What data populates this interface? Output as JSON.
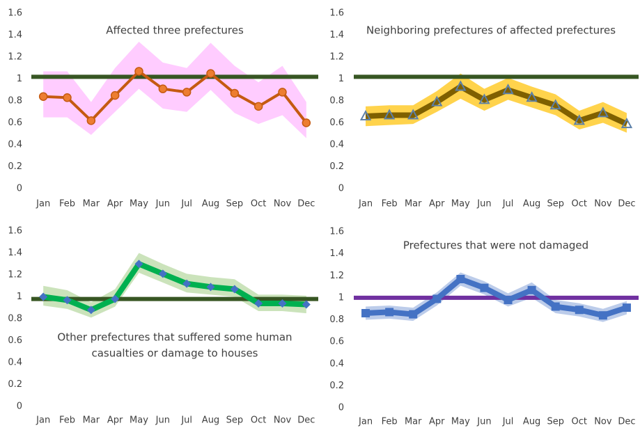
{
  "chart_data": [
    {
      "type": "line",
      "title": "Affected three prefectures",
      "categories": [
        "Jan",
        "Feb",
        "Mar",
        "Apr",
        "May",
        "Jun",
        "Jul",
        "Aug",
        "Sep",
        "Oct",
        "Nov",
        "Dec"
      ],
      "ylim": [
        0,
        1.6
      ],
      "yticks": [
        0,
        0.2,
        0.4,
        0.6,
        0.8,
        1,
        1.2,
        1.4,
        1.6
      ],
      "marker": "circle",
      "series": [
        {
          "color": "#c55a11",
          "marker_color": "#ed7d31",
          "values": [
            0.84,
            0.83,
            0.62,
            0.85,
            1.07,
            0.91,
            0.88,
            1.05,
            0.87,
            0.75,
            0.88,
            0.6
          ]
        }
      ],
      "band": {
        "color": "#ffccff",
        "upper": [
          1.07,
          1.07,
          0.79,
          1.1,
          1.34,
          1.15,
          1.1,
          1.33,
          1.12,
          0.97,
          1.12,
          0.79
        ],
        "lower": [
          0.65,
          0.65,
          0.49,
          0.7,
          0.91,
          0.73,
          0.7,
          0.9,
          0.69,
          0.59,
          0.67,
          0.46
        ]
      },
      "reference": {
        "value": 1.02,
        "color": "#375623"
      }
    },
    {
      "type": "line",
      "title": "Neighboring prefectures of affected prefectures",
      "categories": [
        "Jan",
        "Feb",
        "Mar",
        "Apr",
        "May",
        "Jun",
        "Jul",
        "Aug",
        "Sep",
        "Oct",
        "Nov",
        "Dec"
      ],
      "ylim": [
        0,
        1.6
      ],
      "yticks": [
        0,
        0.2,
        0.4,
        0.6,
        0.8,
        1,
        1.2,
        1.4,
        1.6
      ],
      "marker": "triangle",
      "series": [
        {
          "color": "#7f6000",
          "marker_color": "#5b7fa8",
          "values": [
            0.66,
            0.67,
            0.67,
            0.79,
            0.93,
            0.81,
            0.9,
            0.83,
            0.76,
            0.62,
            0.69,
            0.59
          ]
        }
      ],
      "band": {
        "color": "#ffc000",
        "upper": [
          0.75,
          0.76,
          0.76,
          0.89,
          1.05,
          0.91,
          1.01,
          0.93,
          0.86,
          0.71,
          0.79,
          0.69
        ],
        "lower": [
          0.57,
          0.58,
          0.59,
          0.7,
          0.82,
          0.71,
          0.81,
          0.74,
          0.67,
          0.54,
          0.6,
          0.51
        ]
      },
      "reference": {
        "value": 1.02,
        "color": "#375623"
      }
    },
    {
      "type": "line",
      "title": [
        "Other prefectures that suffered some human",
        "casualties or damage to houses"
      ],
      "categories": [
        "Jan",
        "Feb",
        "Mar",
        "Apr",
        "May",
        "Jun",
        "Jul",
        "Aug",
        "Sep",
        "Oct",
        "Nov",
        "Dec"
      ],
      "ylim": [
        0,
        1.6
      ],
      "yticks": [
        0,
        0.2,
        0.4,
        0.6,
        0.8,
        1,
        1.2,
        1.4,
        1.6
      ],
      "marker": "diamond",
      "series": [
        {
          "color": "#00b050",
          "marker_color": "#4472c4",
          "values": [
            1.0,
            0.97,
            0.88,
            0.98,
            1.3,
            1.21,
            1.12,
            1.09,
            1.07,
            0.94,
            0.94,
            0.93
          ]
        }
      ],
      "band": {
        "color": "#a9d18e",
        "upper": [
          1.1,
          1.06,
          0.95,
          1.07,
          1.4,
          1.3,
          1.21,
          1.18,
          1.16,
          1.02,
          1.02,
          1.01
        ],
        "lower": [
          0.92,
          0.89,
          0.81,
          0.91,
          1.22,
          1.13,
          1.04,
          1.02,
          1.0,
          0.87,
          0.87,
          0.85
        ]
      },
      "reference": {
        "value": 0.98,
        "color": "#375623"
      }
    },
    {
      "type": "line",
      "title": "Prefectures that were not damaged",
      "categories": [
        "Jan",
        "Feb",
        "Mar",
        "Apr",
        "May",
        "Jun",
        "Jul",
        "Aug",
        "Sep",
        "Oct",
        "Nov",
        "Dec"
      ],
      "ylim": [
        0,
        1.6
      ],
      "yticks": [
        0,
        0.2,
        0.4,
        0.6,
        0.8,
        1,
        1.2,
        1.4,
        1.6
      ],
      "marker": "square",
      "series": [
        {
          "color": "#4472c4",
          "marker_color": "#4472c4",
          "values": [
            0.86,
            0.87,
            0.85,
            0.99,
            1.17,
            1.09,
            0.98,
            1.07,
            0.92,
            0.89,
            0.84,
            0.91
          ]
        }
      ],
      "band": {
        "color": "#8faadc",
        "upper": [
          0.92,
          0.93,
          0.91,
          1.05,
          1.23,
          1.15,
          1.04,
          1.14,
          0.98,
          0.95,
          0.9,
          0.97
        ],
        "lower": [
          0.8,
          0.81,
          0.79,
          0.93,
          1.11,
          1.03,
          0.92,
          1.0,
          0.86,
          0.83,
          0.78,
          0.85
        ]
      },
      "reference": {
        "value": 1.0,
        "color": "#7030a0"
      }
    }
  ]
}
